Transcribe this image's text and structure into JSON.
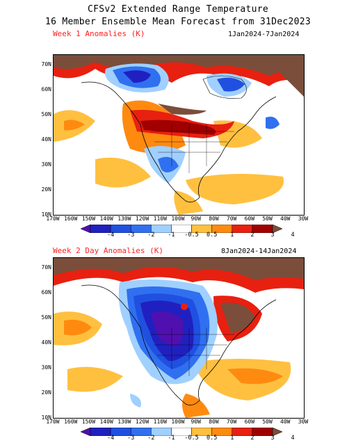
{
  "title_line1": "CFSv2 Extended Range Temperature",
  "title_line2": "16 Member Ensemble Mean Forecast from 31Dec2023",
  "colors": {
    "brown": "#7a4e3a",
    "darkred": "#a00000",
    "red": "#e82010",
    "orange": "#ff8a10",
    "lightorange": "#ffc040",
    "white": "#ffffff",
    "lightblue": "#a0d0ff",
    "blue": "#3070f0",
    "midblue": "#2050e0",
    "indigo": "#2020c0",
    "purple": "#5010b0"
  },
  "colorbar": {
    "labels": [
      "-4",
      "-3",
      "-2",
      "-1",
      "-0.5",
      "0.5",
      "1",
      "2",
      "3",
      "4"
    ],
    "colors": [
      "#5010b0",
      "#2020c0",
      "#2050e0",
      "#3070f0",
      "#a0d0ff",
      "#ffffff",
      "#ffc040",
      "#ff8a10",
      "#e82010",
      "#a00000",
      "#7a4e3a"
    ]
  },
  "lat_labels": [
    "70N",
    "60N",
    "50N",
    "40N",
    "30N",
    "20N",
    "10N"
  ],
  "lon_labels": [
    "170W",
    "160W",
    "150W",
    "140W",
    "130W",
    "120W",
    "110W",
    "100W",
    "90W",
    "80W",
    "70W",
    "60W",
    "50W",
    "40W",
    "30W"
  ],
  "maps": [
    {
      "header_left": "Week 1 Anomalies (K)",
      "header_right": "1Jan2024-7Jan2024"
    },
    {
      "header_left": "Week 2 Day Anomalies (K)",
      "header_right": "8Jan2024-14Jan2024"
    }
  ]
}
